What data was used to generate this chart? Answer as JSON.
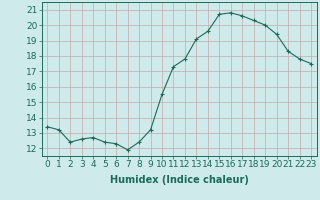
{
  "x": [
    0,
    1,
    2,
    3,
    4,
    5,
    6,
    7,
    8,
    9,
    10,
    11,
    12,
    13,
    14,
    15,
    16,
    17,
    18,
    19,
    20,
    21,
    22,
    23
  ],
  "y": [
    13.4,
    13.2,
    12.4,
    12.6,
    12.7,
    12.4,
    12.3,
    11.9,
    12.4,
    13.2,
    15.5,
    17.3,
    17.8,
    19.1,
    19.6,
    20.7,
    20.8,
    20.6,
    20.3,
    20.0,
    19.4,
    18.3,
    17.8,
    17.5
  ],
  "line_color": "#1a6b5a",
  "marker": "+",
  "marker_size": 3,
  "bg_color": "#ceeaea",
  "grid_color": "#c8a8a8",
  "xlabel": "Humidex (Indice chaleur)",
  "ylabel_ticks": [
    12,
    13,
    14,
    15,
    16,
    17,
    18,
    19,
    20,
    21
  ],
  "ylim": [
    11.5,
    21.5
  ],
  "xlim": [
    -0.5,
    23.5
  ],
  "tick_color": "#1a6b5a",
  "label_color": "#1a6b5a",
  "font_size": 6.5,
  "xlabel_fontsize": 7
}
